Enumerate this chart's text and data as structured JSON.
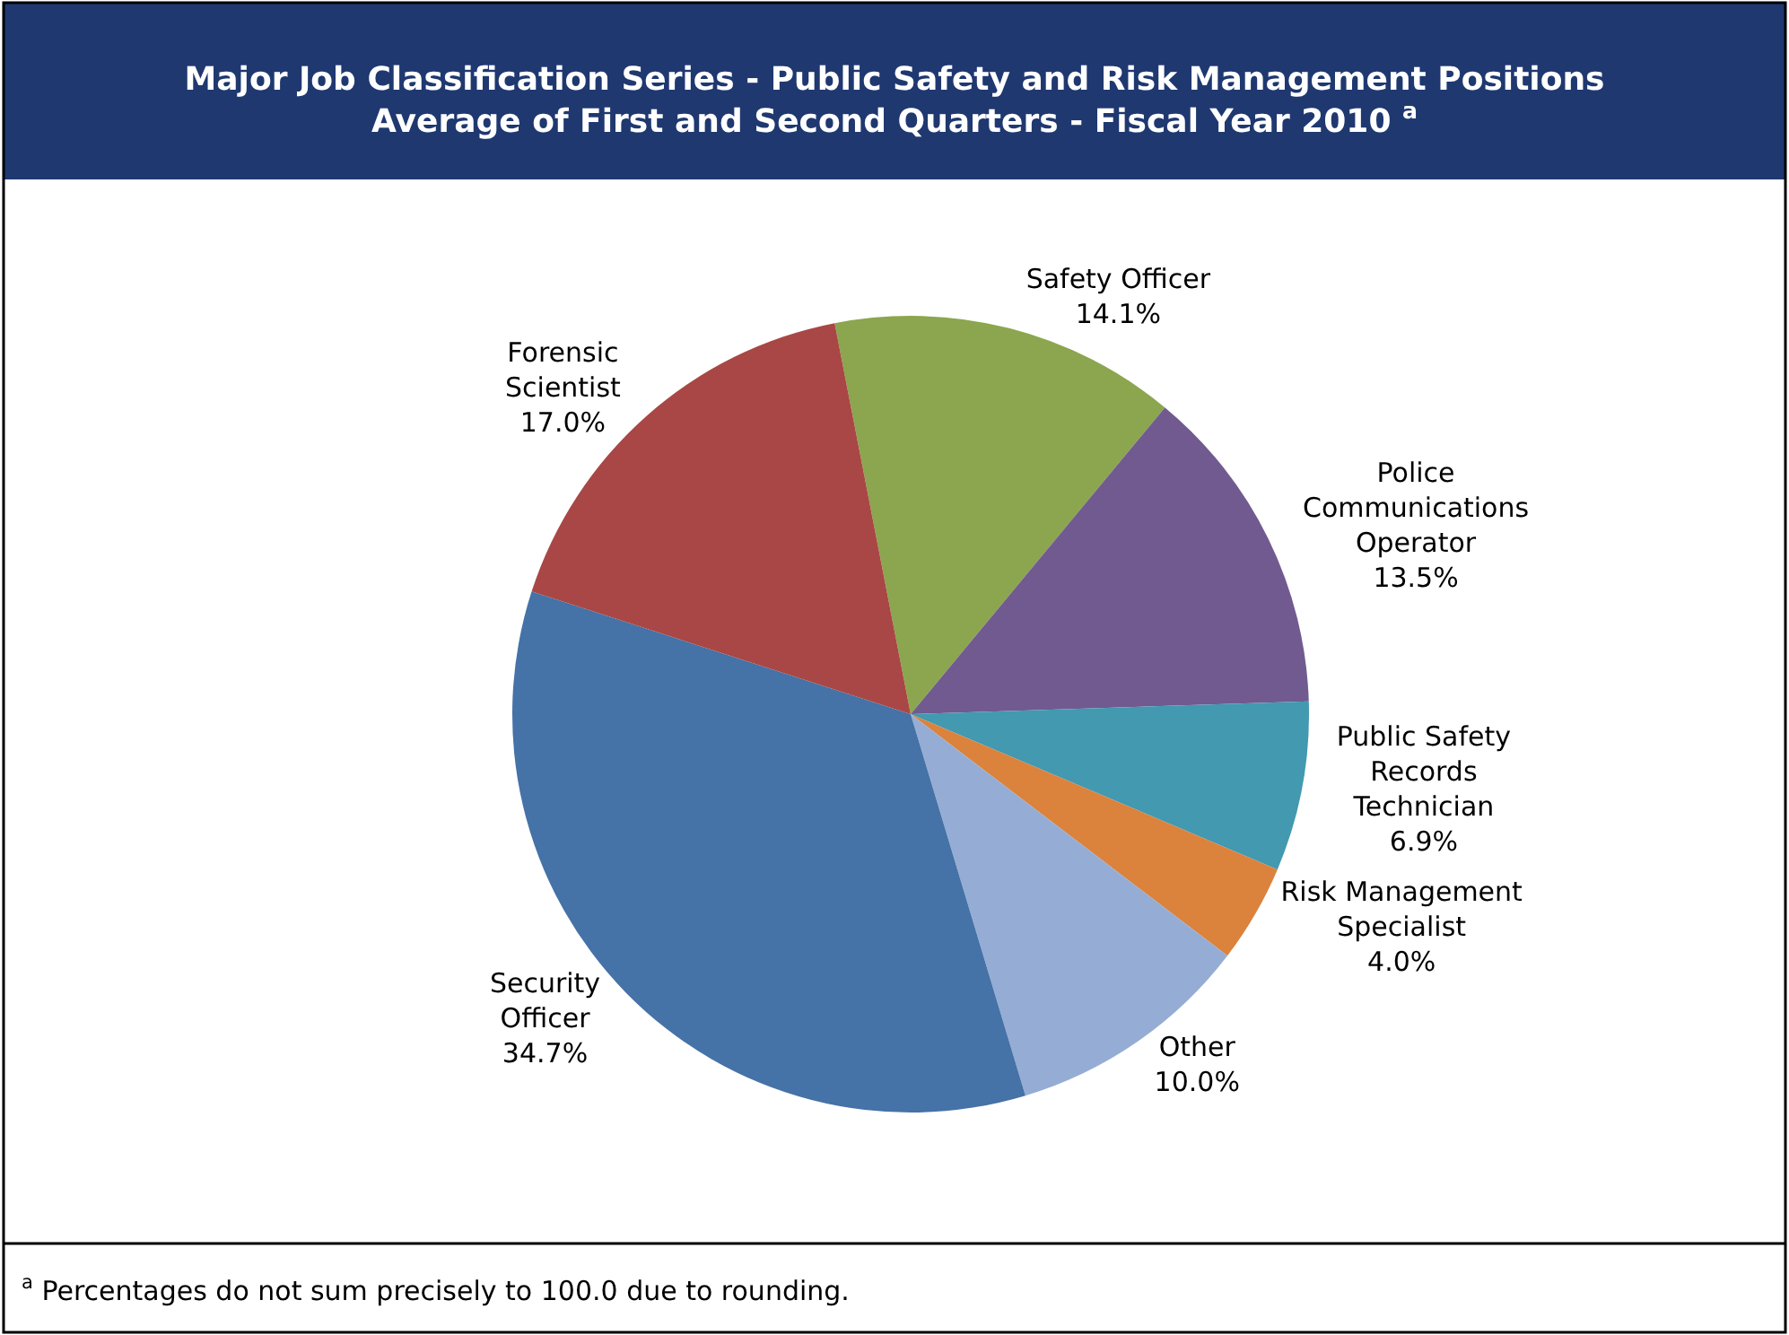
{
  "chart_data": {
    "type": "pie",
    "title": "Major Job Classification Series - Public Safety and Risk Management Positions\nAverage of First and Second Quarters - Fiscal Year 2010 $^{a}$",
    "categories": [
      "Safety Officer",
      "Police Communications Operator",
      "Public Safety Records Technician",
      "Risk Management Specialist",
      "Other",
      "Security Officer",
      "Forensic Scientist"
    ],
    "values": [
      14.1,
      13.5,
      6.9,
      4.0,
      10.0,
      34.7,
      17.0
    ],
    "value_labels": [
      "14.1%",
      "13.5%",
      "6.9%",
      "4.0%",
      "10.0%",
      "34.7%",
      "17.0%"
    ],
    "colors": [
      "#8ba64e",
      "#715a90",
      "#4299b0",
      "#db823d",
      "#95add4",
      "#4572a7",
      "#a84745"
    ],
    "annotations": [
      "$^{a}$ Percentages do not sum precisely to 100.0 due to rounding."
    ]
  }
}
